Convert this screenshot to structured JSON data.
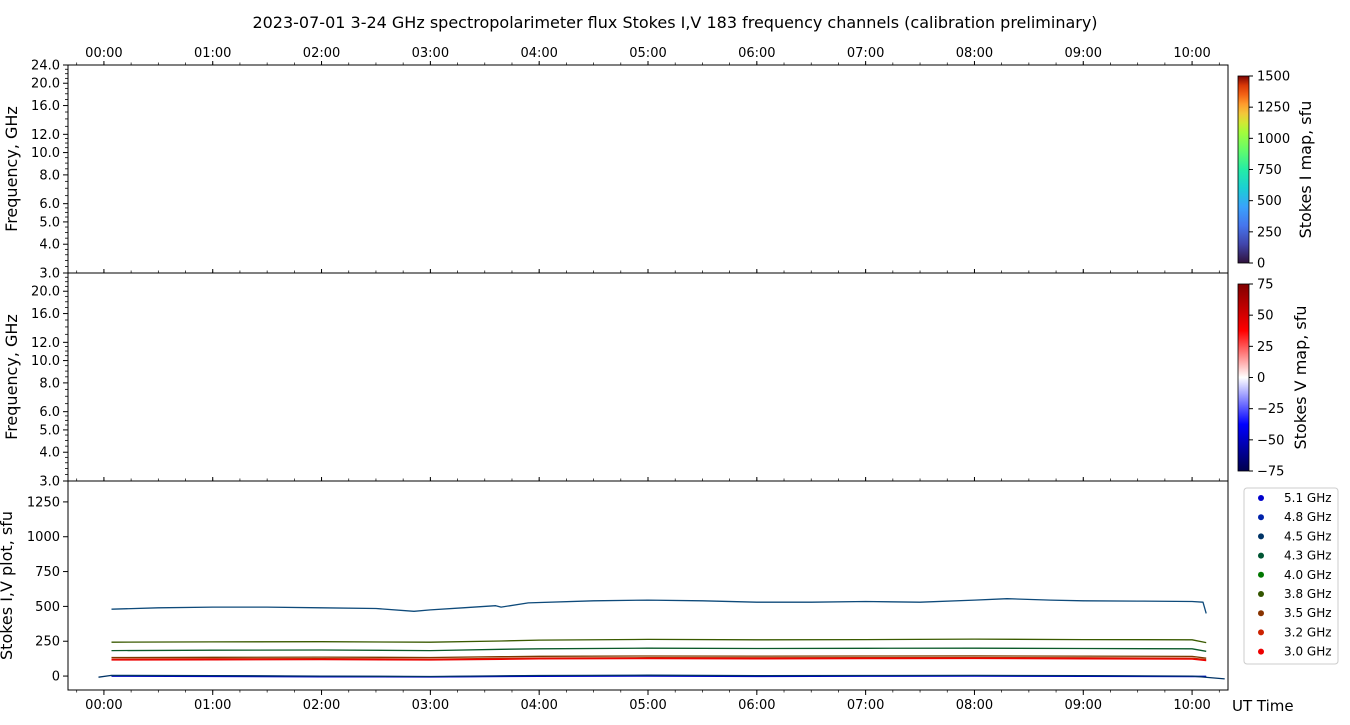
{
  "figure": {
    "title": "2023-07-01      3-24 GHz spectropolarimeter flux   Stokes I,V   183 frequency channels   (calibration preliminary)",
    "time_axis_label": "UT Time"
  },
  "chart_data": [
    {
      "type": "heatmap",
      "panel": "stokes-i-map",
      "ylabel": "Frequency, GHz",
      "yscale": "log",
      "ylim": [
        3.0,
        24.0
      ],
      "yticks": [
        "3.0",
        "4.0",
        "5.0",
        "6.0",
        "8.0",
        "10.0",
        "12.0",
        "16.0",
        "20.0",
        "24.0"
      ],
      "xticks": [
        "00:00",
        "01:00",
        "02:00",
        "03:00",
        "04:00",
        "05:00",
        "06:00",
        "07:00",
        "08:00",
        "09:00",
        "10:00"
      ],
      "colorbar": {
        "label": "Stokes I map, sfu",
        "range": [
          0,
          1500
        ],
        "ticks": [
          "0",
          "250",
          "500",
          "750",
          "1000",
          "1250",
          "1500"
        ],
        "colormap": "turbo"
      }
    },
    {
      "type": "heatmap",
      "panel": "stokes-v-map",
      "ylabel": "Frequency, GHz",
      "yscale": "log",
      "ylim": [
        3.0,
        24.0
      ],
      "yticks": [
        "3.0",
        "4.0",
        "5.0",
        "6.0",
        "8.0",
        "10.0",
        "12.0",
        "16.0",
        "20.0"
      ],
      "colorbar": {
        "label": "Stokes V map, sfu",
        "range": [
          -75,
          75
        ],
        "ticks": [
          "−75",
          "−50",
          "−25",
          "0",
          "25",
          "50",
          "75"
        ],
        "colormap": "seismic"
      }
    },
    {
      "type": "line",
      "panel": "stokes-iv-plot",
      "ylabel": "Stokes I,V plot, sfu",
      "ylim": [
        -100,
        1400
      ],
      "yticks": [
        "0",
        "250",
        "500",
        "750",
        "1000",
        "1250"
      ],
      "xlim": [
        -0.33,
        10.33
      ],
      "xticks": [
        "00:00",
        "01:00",
        "02:00",
        "03:00",
        "04:00",
        "05:00",
        "06:00",
        "07:00",
        "08:00",
        "09:00",
        "10:00"
      ],
      "legend_position": "right",
      "legend": [
        {
          "name": "5.1 GHz",
          "color": "#0000cc"
        },
        {
          "name": "4.8 GHz",
          "color": "#0022aa"
        },
        {
          "name": "4.5 GHz",
          "color": "#003366"
        },
        {
          "name": "4.3 GHz",
          "color": "#005533"
        },
        {
          "name": "4.0 GHz",
          "color": "#007700"
        },
        {
          "name": "3.8 GHz",
          "color": "#335500"
        },
        {
          "name": "3.5 GHz",
          "color": "#883300"
        },
        {
          "name": "3.2 GHz",
          "color": "#cc2200"
        },
        {
          "name": "3.0 GHz",
          "color": "#ee0000"
        }
      ],
      "series": [
        {
          "color": "#0e4a7a",
          "x": [
            0.07,
            0.5,
            1.0,
            1.5,
            2.0,
            2.5,
            2.85,
            3.0,
            3.3,
            3.6,
            3.65,
            3.9,
            4.5,
            5.0,
            5.5,
            6.0,
            6.5,
            7.0,
            7.5,
            8.0,
            8.3,
            8.7,
            9.0,
            9.5,
            10.0,
            10.1,
            10.13
          ],
          "y": [
            480,
            490,
            495,
            495,
            490,
            485,
            465,
            475,
            490,
            505,
            495,
            525,
            540,
            545,
            540,
            530,
            530,
            535,
            530,
            545,
            555,
            545,
            540,
            538,
            535,
            530,
            450
          ]
        },
        {
          "color": "#3a5a00",
          "x": [
            0.07,
            1.0,
            2.0,
            3.0,
            3.65,
            4.0,
            5.0,
            6.0,
            7.0,
            8.0,
            9.0,
            10.0,
            10.13
          ],
          "y": [
            243,
            245,
            247,
            243,
            252,
            258,
            263,
            260,
            262,
            265,
            262,
            260,
            240
          ]
        },
        {
          "color": "#0a5a2a",
          "x": [
            0.07,
            1.0,
            2.0,
            3.0,
            3.65,
            4.0,
            5.0,
            6.0,
            7.0,
            8.0,
            9.0,
            10.0,
            10.13
          ],
          "y": [
            183,
            186,
            187,
            183,
            192,
            196,
            200,
            198,
            199,
            200,
            198,
            196,
            178
          ]
        },
        {
          "color": "#7a3a00",
          "x": [
            0.07,
            1.0,
            2.0,
            3.0,
            3.65,
            4.0,
            5.0,
            6.0,
            7.0,
            8.0,
            9.0,
            10.0,
            10.13
          ],
          "y": [
            133,
            135,
            136,
            133,
            139,
            142,
            144,
            143,
            144,
            145,
            143,
            141,
            128
          ]
        },
        {
          "color": "#cc2200",
          "x": [
            0.07,
            1.0,
            2.0,
            3.0,
            3.65,
            4.0,
            5.0,
            6.0,
            7.0,
            8.0,
            9.0,
            10.0,
            10.13
          ],
          "y": [
            122,
            124,
            125,
            122,
            127,
            130,
            132,
            131,
            132,
            133,
            131,
            129,
            118
          ]
        },
        {
          "color": "#ee0000",
          "x": [
            0.07,
            1.0,
            2.0,
            3.0,
            3.65,
            4.0,
            5.0,
            6.0,
            7.0,
            8.0,
            9.0,
            10.0,
            10.13
          ],
          "y": [
            115,
            117,
            118,
            115,
            120,
            123,
            125,
            124,
            125,
            126,
            124,
            122,
            111
          ]
        },
        {
          "color": "#0022aa",
          "x": [
            0.07,
            1.0,
            2.0,
            3.0,
            4.0,
            5.0,
            6.0,
            7.0,
            8.0,
            9.0,
            10.0,
            10.13
          ],
          "y": [
            3,
            1,
            -2,
            -5,
            2,
            4,
            1,
            2,
            3,
            1,
            -2,
            -2
          ]
        },
        {
          "color": "#0000cc",
          "x": [
            0.07,
            1.0,
            2.0,
            3.0,
            4.0,
            5.0,
            6.0,
            7.0,
            8.0,
            9.0,
            10.0,
            10.13
          ],
          "y": [
            -1,
            -3,
            -5,
            -7,
            -2,
            0,
            -3,
            -1,
            0,
            -2,
            -4,
            -4
          ]
        },
        {
          "color": "#003366",
          "x": [
            -0.05,
            0.07,
            1.0,
            2.0,
            3.0,
            4.0,
            5.0,
            6.0,
            7.0,
            8.0,
            9.0,
            10.0,
            10.3
          ],
          "y": [
            -8,
            5,
            3,
            0,
            -3,
            4,
            6,
            3,
            4,
            5,
            3,
            0,
            -20
          ]
        }
      ]
    }
  ]
}
